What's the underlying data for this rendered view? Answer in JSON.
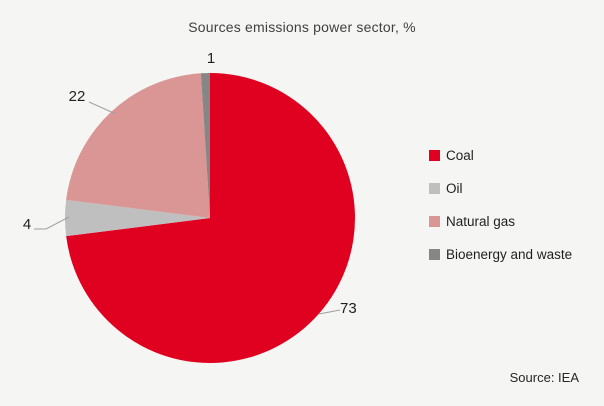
{
  "title": "Sources emissions power sector, %",
  "source_note": "Source: IEA",
  "colors": {
    "background": "#f5f5f3",
    "title_text": "#404040",
    "label_text": "#1f1f1f",
    "leader_line": "#a0a0a0"
  },
  "chart_data": {
    "type": "pie",
    "title": "Sources emissions power sector, %",
    "unit": "%",
    "categories": [
      "Coal",
      "Oil",
      "Natural gas",
      "Bioenergy and waste"
    ],
    "values": [
      73,
      4,
      22,
      1
    ],
    "colors": [
      "#e00020",
      "#bfbfbf",
      "#d99694",
      "#868686"
    ],
    "start_angle_deg": 0,
    "direction": "clockwise",
    "legend_position": "right",
    "data_labels_shown": true,
    "source": "Source: IEA"
  }
}
